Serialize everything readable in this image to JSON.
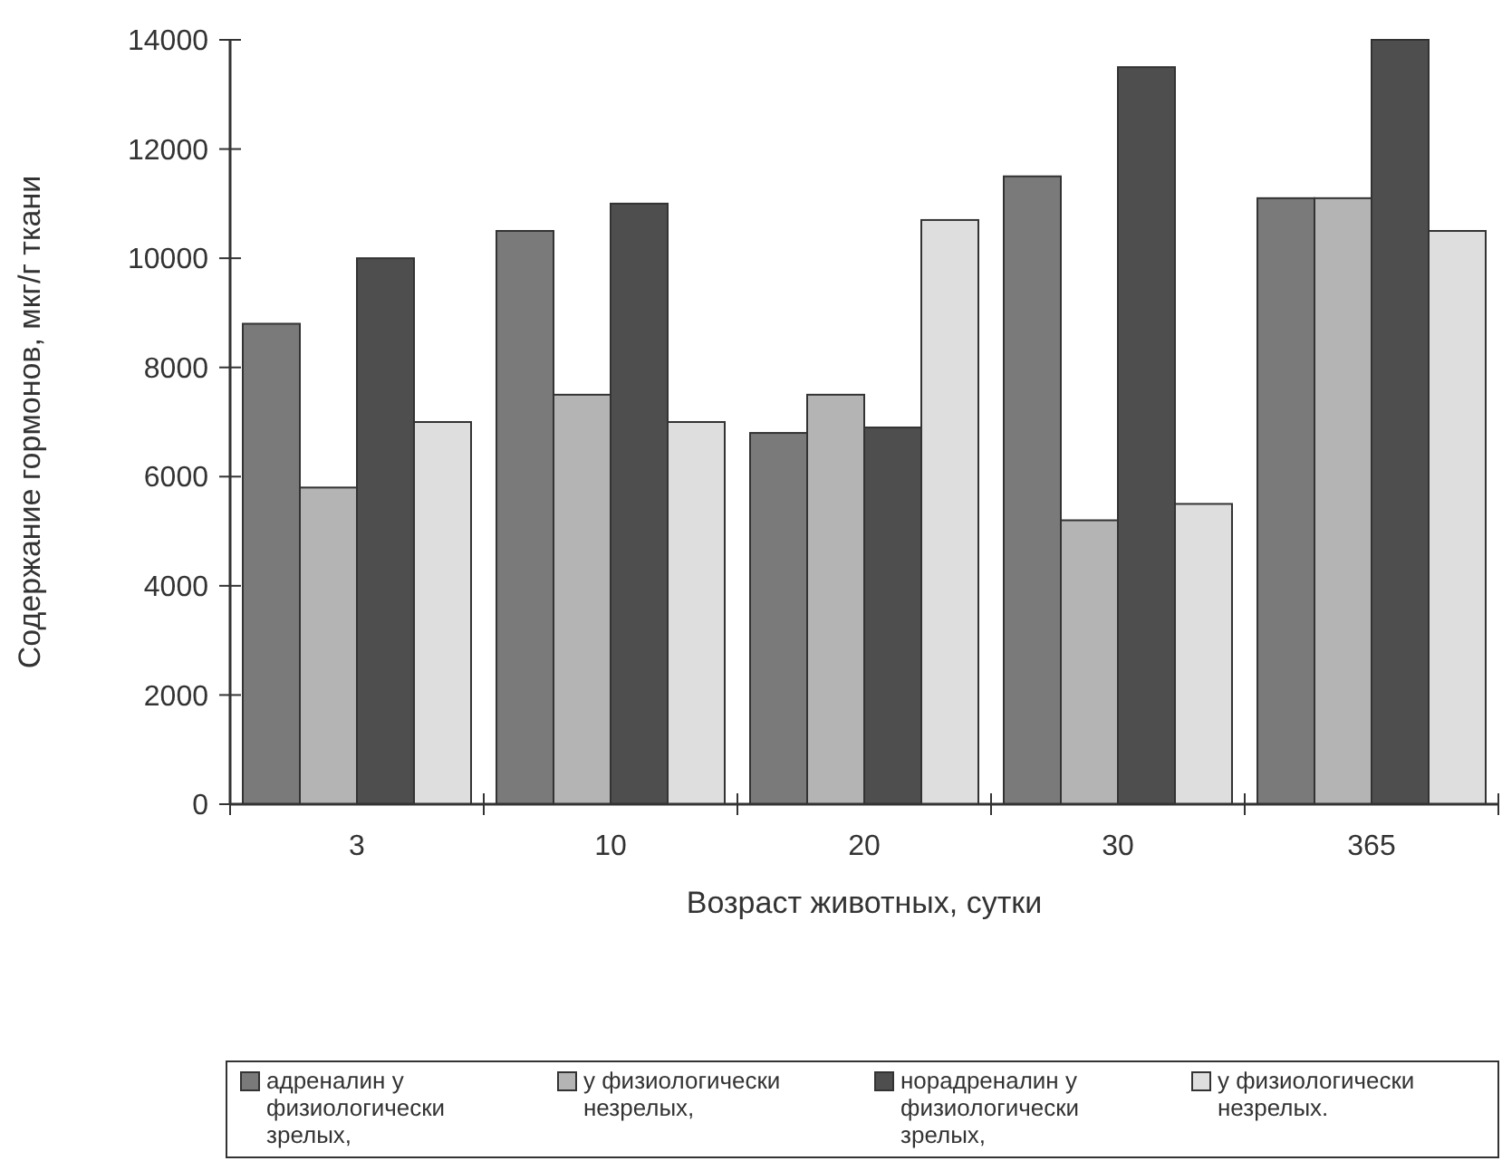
{
  "chart_data": {
    "type": "bar",
    "xlabel": "Возраст животных, сутки",
    "ylabel": "Содержание гормонов, мкг/г ткани",
    "categories": [
      "3",
      "10",
      "20",
      "30",
      "365"
    ],
    "series": [
      {
        "name": "адреналин у физиологически зрелых,",
        "color": "#7a7a7a",
        "values": [
          8800,
          10500,
          6800,
          11500,
          11100
        ]
      },
      {
        "name": "у физиологически незрелых,",
        "color": "#b4b4b4",
        "values": [
          5800,
          7500,
          7500,
          5200,
          11100
        ]
      },
      {
        "name": "норадреналин у физиологически зрелых,",
        "color": "#4e4e4e",
        "values": [
          10000,
          11000,
          6900,
          13500,
          14000
        ]
      },
      {
        "name": "у физиологически незрелых.",
        "color": "#dedede",
        "values": [
          7000,
          7000,
          10700,
          5500,
          10500
        ]
      }
    ],
    "ylim": [
      0,
      14000
    ],
    "yticks": [
      0,
      2000,
      4000,
      6000,
      8000,
      10000,
      12000,
      14000
    ],
    "grid": false,
    "legend": "bottom"
  }
}
